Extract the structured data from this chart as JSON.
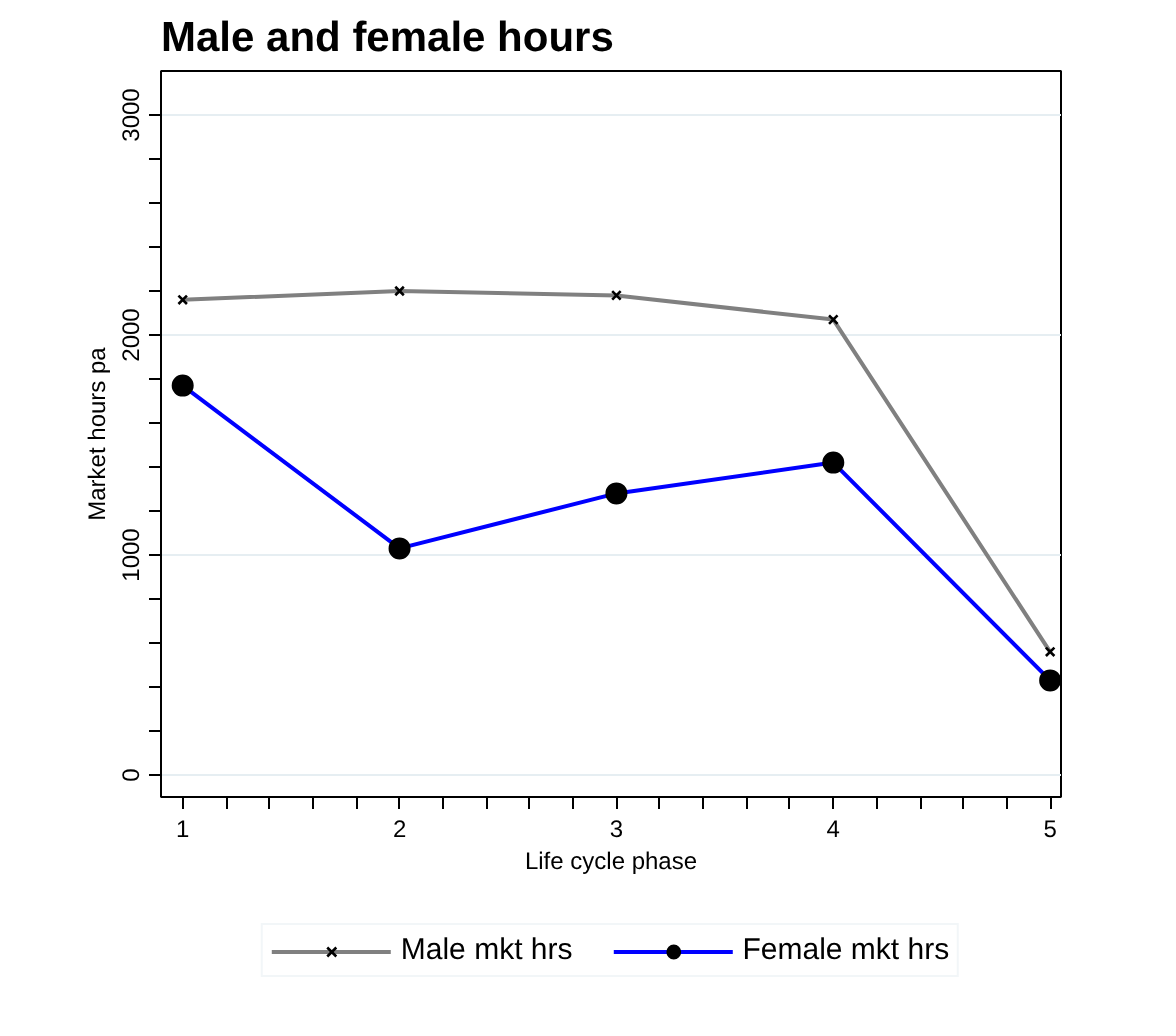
{
  "chart_data": {
    "type": "line",
    "title": "Male and female hours",
    "xlabel": "Life cycle phase",
    "ylabel": "Market hours pa",
    "x": [
      1,
      2,
      3,
      4,
      5
    ],
    "series": [
      {
        "name": "Male mkt hrs",
        "color": "#808080",
        "marker": "cross",
        "values": [
          2160,
          2200,
          2180,
          2070,
          560
        ]
      },
      {
        "name": "Female mkt hrs",
        "color": "#0000ff",
        "marker": "circle",
        "values": [
          1770,
          1030,
          1280,
          1420,
          430
        ]
      }
    ],
    "xlim": [
      0.9,
      5.05
    ],
    "ylim": [
      -100,
      3200
    ],
    "xticks": [
      1,
      {
        "value": 1.2,
        "label": null
      },
      {
        "value": 1.4,
        "label": null
      },
      {
        "value": 1.6,
        "label": null
      },
      {
        "value": 1.8,
        "label": null
      },
      2,
      {
        "value": 2.2,
        "label": null
      },
      {
        "value": 2.4,
        "label": null
      },
      {
        "value": 2.6,
        "label": null
      },
      {
        "value": 2.8,
        "label": null
      },
      3,
      {
        "value": 3.2,
        "label": null
      },
      {
        "value": 3.4,
        "label": null
      },
      {
        "value": 3.6,
        "label": null
      },
      {
        "value": 3.8,
        "label": null
      },
      4,
      {
        "value": 4.2,
        "label": null
      },
      {
        "value": 4.4,
        "label": null
      },
      {
        "value": 4.6,
        "label": null
      },
      {
        "value": 4.8,
        "label": null
      },
      5
    ],
    "yticks": [
      0,
      {
        "value": 200,
        "label": null
      },
      {
        "value": 400,
        "label": null
      },
      {
        "value": 600,
        "label": null
      },
      {
        "value": 800,
        "label": null
      },
      1000,
      {
        "value": 1200,
        "label": null
      },
      {
        "value": 1400,
        "label": null
      },
      {
        "value": 1600,
        "label": null
      },
      {
        "value": 1800,
        "label": null
      },
      2000,
      {
        "value": 2200,
        "label": null
      },
      {
        "value": 2400,
        "label": null
      },
      {
        "value": 2600,
        "label": null
      },
      {
        "value": 2800,
        "label": null
      },
      3000
    ],
    "grid": "y",
    "legend": "bottom",
    "line_style": "solid"
  }
}
